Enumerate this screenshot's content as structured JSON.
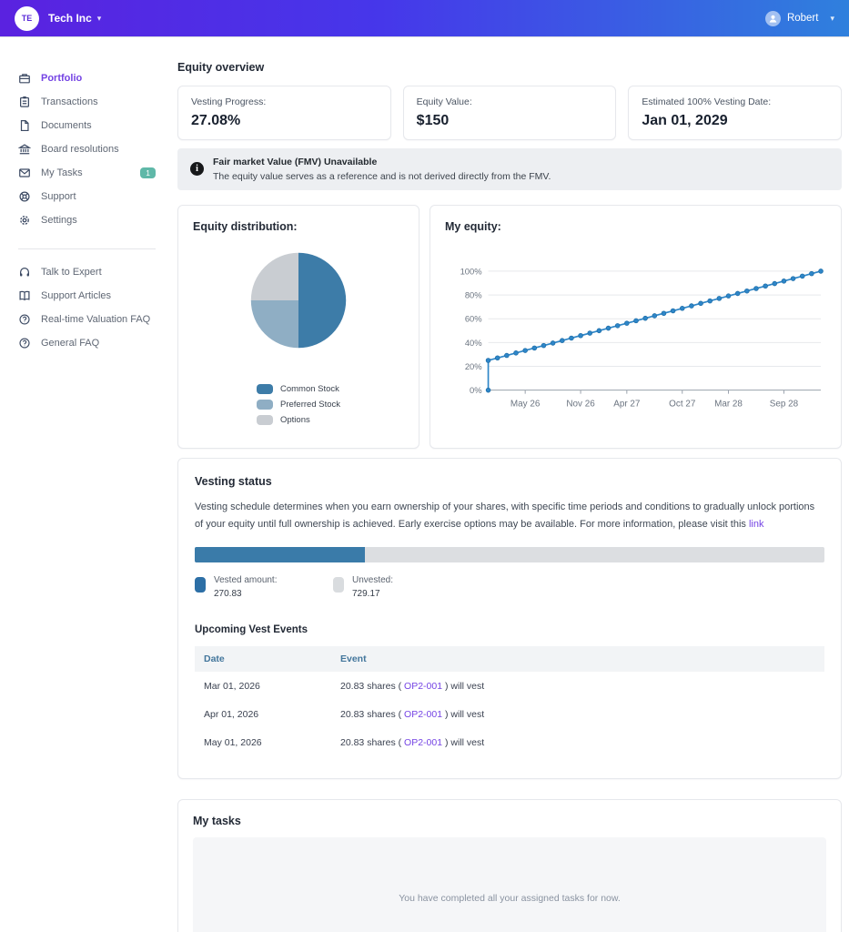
{
  "header": {
    "company_initials": "TE",
    "company_name": "Tech Inc",
    "user_name": "Robert"
  },
  "sidebar": {
    "primary": [
      {
        "label": "Portfolio",
        "active": true
      },
      {
        "label": "Transactions"
      },
      {
        "label": "Documents"
      },
      {
        "label": "Board resolutions"
      },
      {
        "label": "My Tasks",
        "badge": "1"
      },
      {
        "label": "Support"
      },
      {
        "label": "Settings"
      }
    ],
    "secondary": [
      {
        "label": "Talk to Expert"
      },
      {
        "label": "Support Articles"
      },
      {
        "label": "Real-time Valuation FAQ"
      },
      {
        "label": "General FAQ"
      }
    ]
  },
  "overview": {
    "title": "Equity overview",
    "cards": [
      {
        "label": "Vesting Progress:",
        "value": "27.08%"
      },
      {
        "label": "Equity Value:",
        "value": "$150"
      },
      {
        "label": "Estimated 100% Vesting Date:",
        "value": "Jan 01, 2029"
      }
    ]
  },
  "notice": {
    "title": "Fair market Value (FMV) Unavailable",
    "body": "The equity value serves as a reference and is not derived directly from the FMV."
  },
  "vesting": {
    "title": "Vesting status",
    "description_before": "Vesting schedule determines when you earn ownership of your shares, with specific time periods and conditions to gradually unlock portions of your equity until full ownership is achieved. Early exercise options may be available. For more information, please visit this ",
    "link_text": "link",
    "progress_pct": 27.08,
    "legend": [
      {
        "label": "Vested amount:",
        "value": "270.83",
        "color": "#2d6fa6"
      },
      {
        "label": "Unvested:",
        "value": "729.17",
        "color": "#d9dcdf"
      }
    ],
    "events_title": "Upcoming Vest Events",
    "table": {
      "columns": [
        "Date",
        "Event"
      ],
      "rows": [
        {
          "date": "Mar 01, 2026",
          "event_prefix": "20.83 shares ( ",
          "event_link": "OP2-001",
          "event_suffix": " ) will vest"
        },
        {
          "date": "Apr 01, 2026",
          "event_prefix": "20.83 shares ( ",
          "event_link": "OP2-001",
          "event_suffix": " ) will vest"
        },
        {
          "date": "May 01, 2026",
          "event_prefix": "20.83 shares ( ",
          "event_link": "OP2-001",
          "event_suffix": " ) will vest"
        }
      ]
    }
  },
  "tasks": {
    "title": "My tasks",
    "empty_message": "You have completed all your assigned tasks for now."
  },
  "colors": {
    "accent_purple": "#7443e4",
    "badge_teal": "#5fb8a8",
    "progress_blue": "#3a7ba9",
    "line_blue": "#2e86c8"
  },
  "chart_data": [
    {
      "type": "pie",
      "title": "Equity distribution:",
      "labels": [
        "Common Stock",
        "Preferred Stock",
        "Options"
      ],
      "values": [
        50,
        25,
        25
      ],
      "colors": [
        "#3d7ca8",
        "#8faec4",
        "#c9cdd2"
      ],
      "legend_position": "bottom"
    },
    {
      "type": "line",
      "title": "My equity:",
      "x_unit": "months since Jan 2026",
      "ylim": [
        0,
        100
      ],
      "y_ticks": [
        0,
        20,
        40,
        60,
        80,
        100
      ],
      "x_ticks": [
        {
          "m": 4,
          "label": "May 26"
        },
        {
          "m": 10,
          "label": "Nov 26"
        },
        {
          "m": 15,
          "label": "Apr 27"
        },
        {
          "m": 21,
          "label": "Oct 27"
        },
        {
          "m": 26,
          "label": "Mar 28"
        },
        {
          "m": 32,
          "label": "Sep 28"
        }
      ],
      "line_color": "#2e86c8",
      "marker": "circle",
      "grid": true,
      "points": [
        [
          0,
          0
        ],
        [
          0,
          25
        ],
        [
          1,
          27.08
        ],
        [
          2,
          29.17
        ],
        [
          3,
          31.25
        ],
        [
          4,
          33.33
        ],
        [
          5,
          35.42
        ],
        [
          6,
          37.5
        ],
        [
          7,
          39.58
        ],
        [
          8,
          41.67
        ],
        [
          9,
          43.75
        ],
        [
          10,
          45.83
        ],
        [
          11,
          47.92
        ],
        [
          12,
          50
        ],
        [
          13,
          52.08
        ],
        [
          14,
          54.17
        ],
        [
          15,
          56.25
        ],
        [
          16,
          58.33
        ],
        [
          17,
          60.42
        ],
        [
          18,
          62.5
        ],
        [
          19,
          64.58
        ],
        [
          20,
          66.67
        ],
        [
          21,
          68.75
        ],
        [
          22,
          70.83
        ],
        [
          23,
          72.92
        ],
        [
          24,
          75
        ],
        [
          25,
          77.08
        ],
        [
          26,
          79.17
        ],
        [
          27,
          81.25
        ],
        [
          28,
          83.33
        ],
        [
          29,
          85.42
        ],
        [
          30,
          87.5
        ],
        [
          31,
          89.58
        ],
        [
          32,
          91.67
        ],
        [
          33,
          93.75
        ],
        [
          34,
          95.83
        ],
        [
          35,
          97.92
        ],
        [
          36,
          100
        ]
      ]
    }
  ]
}
